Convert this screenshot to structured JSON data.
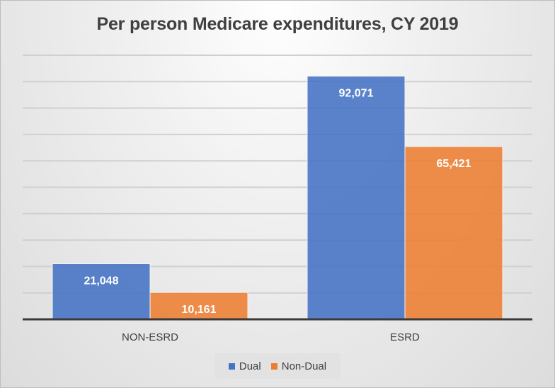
{
  "chart_data": {
    "type": "bar",
    "title": "Per person Medicare expenditures, CY 2019",
    "categories": [
      "NON-ESRD",
      "ESRD"
    ],
    "series": [
      {
        "name": "Dual",
        "color": "#4472c4",
        "values": [
          21048,
          92071
        ],
        "labels": [
          "21,048",
          "92,071"
        ]
      },
      {
        "name": "Non-Dual",
        "color": "#ed7d31",
        "values": [
          10161,
          65421
        ],
        "labels": [
          "10,161",
          "65,421"
        ]
      }
    ],
    "xlabel": "",
    "ylabel": "",
    "ylim": [
      0,
      100000
    ],
    "grid_step": 10000,
    "grid": true,
    "y_tick_labels_visible": false,
    "legend": "bottom"
  }
}
